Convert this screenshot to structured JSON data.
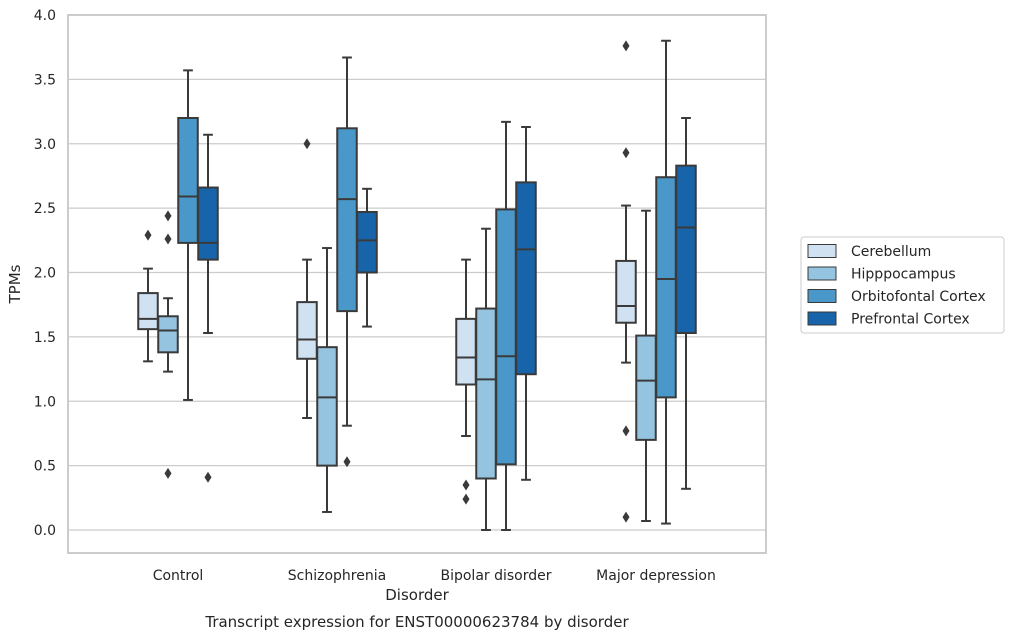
{
  "chart_data": {
    "type": "box",
    "title": "",
    "xlabel": "Disorder",
    "ylabel": "TPMs",
    "caption": "Transcript expression for ENST00000623784 by disorder",
    "ylim": [
      -0.18,
      4.0
    ],
    "yticks": [
      "0.0",
      "0.5",
      "1.0",
      "1.5",
      "2.0",
      "2.5",
      "3.0",
      "3.5",
      "4.0"
    ],
    "ytick_values": [
      0.0,
      0.5,
      1.0,
      1.5,
      2.0,
      2.5,
      3.0,
      3.5,
      4.0
    ],
    "grid": true,
    "legend_position": "right",
    "categories": [
      "Control",
      "Schizophrenia",
      "Bipolar disorder",
      "Major depression"
    ],
    "series": [
      {
        "name": "Cerebellum",
        "color": "#d0e1f2",
        "boxes": [
          {
            "whisker_low": 1.31,
            "q1": 1.56,
            "median": 1.64,
            "q3": 1.84,
            "whisker_high": 2.03,
            "outliers": [
              2.29
            ]
          },
          {
            "whisker_low": 0.87,
            "q1": 1.33,
            "median": 1.48,
            "q3": 1.77,
            "whisker_high": 2.1,
            "outliers": [
              3.0
            ]
          },
          {
            "whisker_low": 0.73,
            "q1": 1.13,
            "median": 1.34,
            "q3": 1.64,
            "whisker_high": 2.1,
            "outliers": [
              0.35,
              0.24
            ]
          },
          {
            "whisker_low": 1.3,
            "q1": 1.61,
            "median": 1.74,
            "q3": 2.09,
            "whisker_high": 2.52,
            "outliers": [
              3.76,
              2.93,
              0.77,
              0.1
            ]
          }
        ]
      },
      {
        "name": "Hipppocampus",
        "color": "#94c4df",
        "boxes": [
          {
            "whisker_low": 1.23,
            "q1": 1.38,
            "median": 1.55,
            "q3": 1.66,
            "whisker_high": 1.8,
            "outliers": [
              2.44,
              2.26,
              0.44
            ]
          },
          {
            "whisker_low": 0.14,
            "q1": 0.5,
            "median": 1.03,
            "q3": 1.42,
            "whisker_high": 2.19,
            "outliers": []
          },
          {
            "whisker_low": 0.0,
            "q1": 0.4,
            "median": 1.17,
            "q3": 1.72,
            "whisker_high": 2.34,
            "outliers": []
          },
          {
            "whisker_low": 0.07,
            "q1": 0.7,
            "median": 1.16,
            "q3": 1.51,
            "whisker_high": 2.48,
            "outliers": []
          }
        ]
      },
      {
        "name": "Orbitofontal Cortex",
        "color": "#4a98c9",
        "boxes": [
          {
            "whisker_low": 1.01,
            "q1": 2.23,
            "median": 2.59,
            "q3": 3.2,
            "whisker_high": 3.57,
            "outliers": []
          },
          {
            "whisker_low": 0.81,
            "q1": 1.7,
            "median": 2.57,
            "q3": 3.12,
            "whisker_high": 3.67,
            "outliers": [
              0.53
            ]
          },
          {
            "whisker_low": 0.0,
            "q1": 0.51,
            "median": 1.35,
            "q3": 2.49,
            "whisker_high": 3.17,
            "outliers": []
          },
          {
            "whisker_low": 0.05,
            "q1": 1.03,
            "median": 1.95,
            "q3": 2.74,
            "whisker_high": 3.8,
            "outliers": []
          }
        ]
      },
      {
        "name": "Prefrontal Cortex",
        "color": "#1764ab",
        "boxes": [
          {
            "whisker_low": 1.53,
            "q1": 2.1,
            "median": 2.23,
            "q3": 2.66,
            "whisker_high": 3.07,
            "outliers": [
              0.41
            ]
          },
          {
            "whisker_low": 1.58,
            "q1": 2.0,
            "median": 2.25,
            "q3": 2.47,
            "whisker_high": 2.65,
            "outliers": []
          },
          {
            "whisker_low": 0.39,
            "q1": 1.21,
            "median": 2.18,
            "q3": 2.7,
            "whisker_high": 3.13,
            "outliers": []
          },
          {
            "whisker_low": 0.32,
            "q1": 1.53,
            "median": 2.35,
            "q3": 2.83,
            "whisker_high": 3.2,
            "outliers": []
          }
        ]
      }
    ]
  },
  "colors": {
    "box_edge": "#3a3a3a",
    "grid": "#cccccc",
    "axes_frame": "#cccccc",
    "text": "#262626"
  }
}
